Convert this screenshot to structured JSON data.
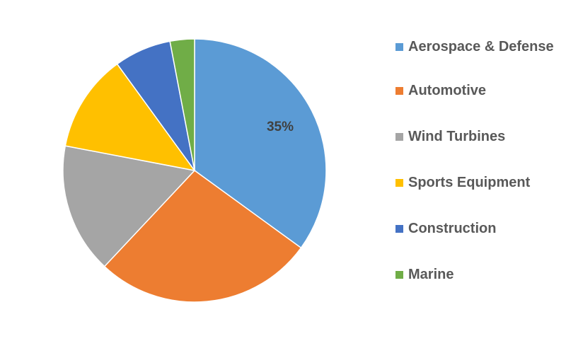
{
  "chart_data": {
    "type": "pie",
    "categories": [
      "Aerospace & Defense",
      "Automotive",
      "Wind Turbines",
      "Sports Equipment",
      "Construction",
      "Marine"
    ],
    "values": [
      35,
      27,
      16,
      12,
      7,
      3
    ],
    "unit": "%",
    "colors": [
      "#5B9BD5",
      "#ED7D31",
      "#A5A5A5",
      "#FFC000",
      "#4472C4",
      "#70AD47"
    ],
    "data_labels": [
      {
        "category": "Aerospace & Defense",
        "text": "35%"
      }
    ],
    "start_angle_deg": 0,
    "direction": "clockwise",
    "legend_position": "right",
    "title": ""
  }
}
